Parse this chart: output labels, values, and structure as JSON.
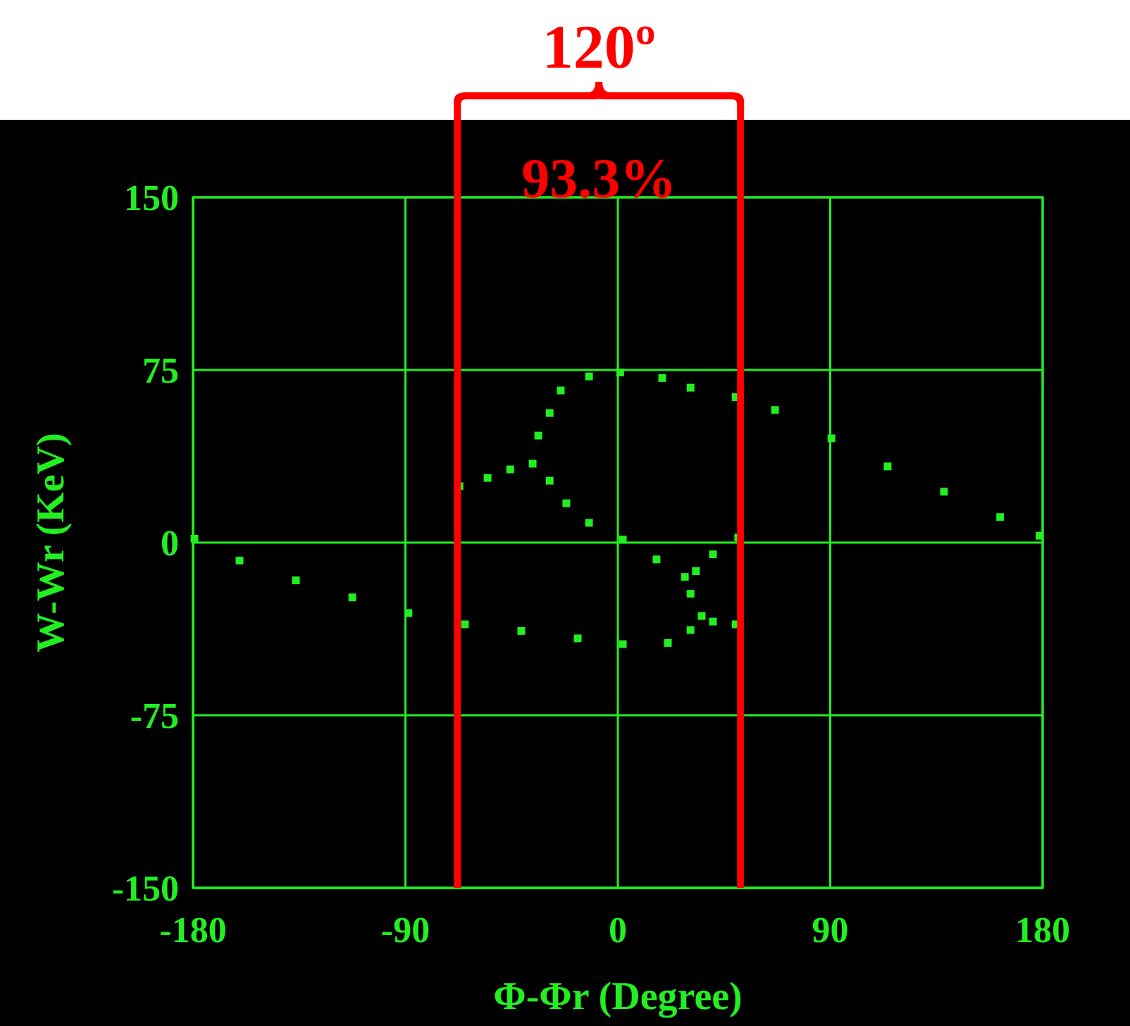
{
  "chart_data": {
    "type": "scatter",
    "xlabel": "Φ-Φr (Degree)",
    "ylabel": "W-Wr (KeV)",
    "xlim": [
      -180,
      180
    ],
    "xticks": [
      -180,
      -90,
      0,
      90,
      180
    ],
    "ylim": [
      -150,
      150
    ],
    "yticks": [
      -150,
      -75,
      0,
      75,
      150
    ],
    "grid": true,
    "marker": "square",
    "series": [
      {
        "color": "#22ee22",
        "x": [
          -179.4,
          -160.3,
          -136.4,
          -112.5,
          -88.7,
          -64.8,
          -40.9,
          -17.0,
          2.1,
          21.2,
          30.8,
          35.5,
          40.3,
          49.9,
          30.8,
          28.4,
          33.1,
          40.3,
          51.0,
          16.4,
          2.1,
          -12.2,
          -21.8,
          -28.9,
          -36.1,
          -45.6,
          -55.2,
          -67.1,
          -33.7,
          -28.9,
          -24.2,
          -12.2,
          1.0,
          18.8,
          30.8,
          49.9,
          66.6,
          90.5,
          114.3,
          138.2,
          162.0,
          178.7
        ],
        "values": [
          1.7,
          -7.8,
          -16.4,
          -23.8,
          -30.6,
          -35.5,
          -38.4,
          -41.6,
          -44.1,
          -43.6,
          -38,
          -31.9,
          -34.3,
          -35.5,
          -22.2,
          -14.9,
          -12.4,
          -5.1,
          2.2,
          -7.3,
          1.3,
          8.6,
          17.1,
          26.9,
          34.3,
          31.8,
          28.1,
          24.5,
          46.5,
          56.3,
          66.1,
          72.2,
          73.9,
          71.5,
          67.3,
          63.2,
          57.6,
          45.3,
          33.1,
          22.1,
          11.1,
          3.0
        ]
      }
    ],
    "ref_lines": [
      {
        "axis": "x",
        "value": -68,
        "color": "#ff0000"
      },
      {
        "axis": "x",
        "value": 52,
        "color": "#ff0000"
      }
    ],
    "annotations": [
      "120º",
      "93.3%"
    ]
  }
}
